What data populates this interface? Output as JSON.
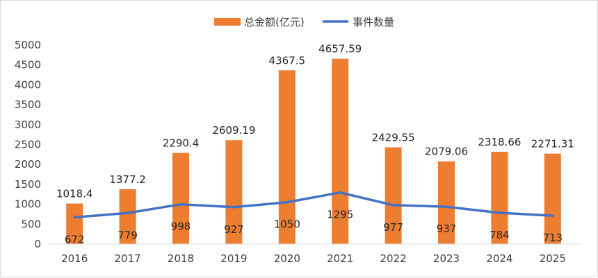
{
  "chart_data": {
    "type": "bar",
    "categories": [
      "2016",
      "2017",
      "2018",
      "2019",
      "2020",
      "2021",
      "2022",
      "2023",
      "2024",
      "2025"
    ],
    "series": [
      {
        "name": "总金额(亿元)",
        "chart_type": "bar",
        "color": "#ED7D31",
        "values": [
          1018.4,
          1377.2,
          2290.4,
          2609.19,
          4367.5,
          4657.59,
          2429.55,
          2079.06,
          2318.66,
          2271.31
        ],
        "labels": [
          "1018.4",
          "1377.2",
          "2290.4",
          "2609.19",
          "4367.5",
          "4657.59",
          "2429.55",
          "2079.06",
          "2318.66",
          "2271.31"
        ]
      },
      {
        "name": "事件数量",
        "chart_type": "line",
        "color": "#4472C4",
        "values": [
          672,
          779,
          998,
          927,
          1050,
          1295,
          977,
          937,
          784,
          713
        ],
        "labels": [
          "672",
          "779",
          "998",
          "927",
          "1050",
          "1295",
          "977",
          "937",
          "784",
          "713"
        ]
      }
    ],
    "ylim": [
      0,
      5000
    ],
    "yticks": [
      "0",
      "500",
      "1000",
      "1500",
      "2000",
      "2500",
      "3000",
      "3500",
      "4000",
      "4500",
      "5000"
    ],
    "legend_position": "top",
    "grid": false
  }
}
